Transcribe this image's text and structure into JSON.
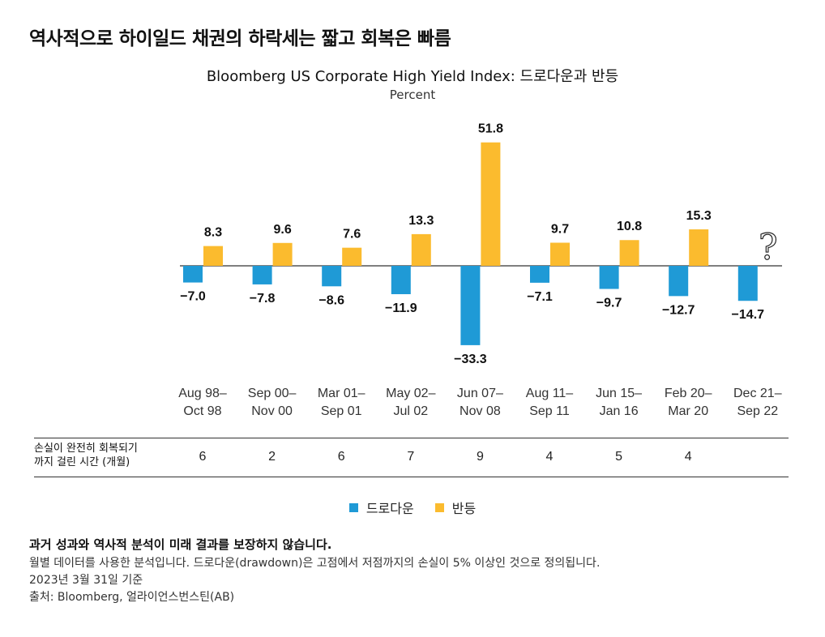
{
  "headline": "역사적으로 하이일드 채권의 하락세는 짧고 회복은 빠름",
  "chart_data": {
    "type": "bar",
    "title": "Bloomberg US Corporate High Yield Index: 드로다운과 반등",
    "subtitle": "Percent",
    "categories": [
      [
        "Aug 98–",
        "Oct 98"
      ],
      [
        "Sep 00–",
        "Nov 00"
      ],
      [
        "Mar 01–",
        "Sep 01"
      ],
      [
        "May 02–",
        "Jul 02"
      ],
      [
        "Jun 07–",
        "Nov 08"
      ],
      [
        "Aug 11–",
        "Sep 11"
      ],
      [
        "Jun 15–",
        "Jan 16"
      ],
      [
        "Feb 20–",
        "Mar 20"
      ],
      [
        "Dec 21–",
        "Sep 22"
      ]
    ],
    "series": [
      {
        "name": "드로다운",
        "color": "#1f9ad6",
        "values": [
          -7.0,
          -7.8,
          -8.6,
          -11.9,
          -33.3,
          -7.1,
          -9.7,
          -12.7,
          -14.7
        ],
        "labels": [
          "−7.0",
          "−7.8",
          "−8.6",
          "−11.9",
          "−33.3",
          "−7.1",
          "−9.7",
          "−12.7",
          "−14.7"
        ]
      },
      {
        "name": "반등",
        "color": "#fbbb2e",
        "values": [
          8.3,
          9.6,
          7.6,
          13.3,
          51.8,
          9.7,
          10.8,
          15.3,
          null
        ],
        "labels": [
          "8.3",
          "9.6",
          "7.6",
          "13.3",
          "51.8",
          "9.7",
          "10.8",
          "15.3",
          ""
        ]
      }
    ],
    "unknown_marker": "?",
    "xlabel": "",
    "ylabel": ""
  },
  "recovery": {
    "label_line1": "손실이 완전히 회복되기",
    "label_line2": "까지 걸린 시간 (개월)",
    "values": [
      "6",
      "2",
      "6",
      "7",
      "9",
      "4",
      "5",
      "4",
      ""
    ]
  },
  "legend": {
    "drawdown": "드로다운",
    "rebound": "반등"
  },
  "colors": {
    "drawdown": "#1f9ad6",
    "rebound": "#fbbb2e"
  },
  "footnotes": {
    "disclaimer": "과거 성과와 역사적 분석이 미래 결과를 보장하지 않습니다.",
    "method": "월별 데이터를 사용한 분석입니다. 드로다운(drawdown)은 고점에서 저점까지의 손실이 5% 이상인 것으로 정의됩니다.",
    "date": "2023년 3월 31일 기준",
    "source": "출처:  Bloomberg, 얼라이언스번스틴(AB)"
  }
}
